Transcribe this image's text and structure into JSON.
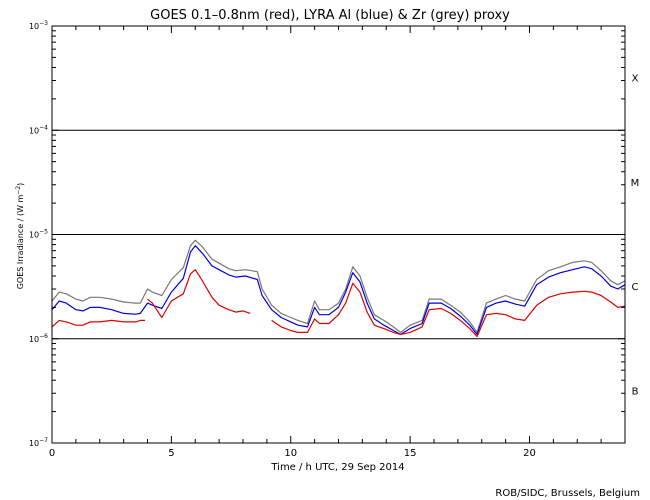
{
  "chart_data": {
    "type": "line",
    "title": "GOES 0.1–0.8nm (red), LYRA Al (blue) & Zr (grey) proxy",
    "xlabel": "Time / h UTC, 29 Sep 2014",
    "ylabel": "GOES Irradiance / (W m",
    "ylabel_exp": "−2",
    "ylabel_close": ")",
    "xlim": [
      0,
      24
    ],
    "ylim": [
      1e-07,
      0.001
    ],
    "yscale": "log",
    "x_ticks": [
      0,
      5,
      10,
      15,
      20
    ],
    "y_ticks": [
      {
        "value": 1e-07,
        "base": "10",
        "exp": "−7"
      },
      {
        "value": 1e-06,
        "base": "10",
        "exp": "−6"
      },
      {
        "value": 1e-05,
        "base": "10",
        "exp": "−5"
      },
      {
        "value": 0.0001,
        "base": "10",
        "exp": "−4"
      },
      {
        "value": 0.001,
        "base": "10",
        "exp": "−3"
      }
    ],
    "flare_classes": [
      {
        "label": "X",
        "value": 0.00032
      },
      {
        "label": "M",
        "value": 3.2e-05
      },
      {
        "label": "C",
        "value": 3.2e-06
      },
      {
        "label": "B",
        "value": 3.2e-07
      }
    ],
    "reference_lines": [
      0.0001,
      1e-05,
      1e-06
    ],
    "credit": "ROB/SIDC, Brussels, Belgium",
    "series": [
      {
        "name": "LYRA Zr (grey)",
        "color": "#777777",
        "points": [
          [
            0.0,
            2.3e-06
          ],
          [
            0.3,
            2.8e-06
          ],
          [
            0.6,
            2.7e-06
          ],
          [
            1.0,
            2.4e-06
          ],
          [
            1.3,
            2.3e-06
          ],
          [
            1.6,
            2.5e-06
          ],
          [
            2.0,
            2.5e-06
          ],
          [
            2.5,
            2.4e-06
          ],
          [
            3.0,
            2.25e-06
          ],
          [
            3.5,
            2.2e-06
          ],
          [
            3.7,
            2.2e-06
          ],
          [
            4.0,
            3e-06
          ],
          [
            4.2,
            2.8e-06
          ],
          [
            4.6,
            2.6e-06
          ],
          [
            5.0,
            3.7e-06
          ],
          [
            5.5,
            4.8e-06
          ],
          [
            5.8,
            7.8e-06
          ],
          [
            6.0,
            8.8e-06
          ],
          [
            6.3,
            7.6e-06
          ],
          [
            6.7,
            5.8e-06
          ],
          [
            7.0,
            5.3e-06
          ],
          [
            7.4,
            4.7e-06
          ],
          [
            7.7,
            4.5e-06
          ],
          [
            8.1,
            4.6e-06
          ],
          [
            8.6,
            4.4e-06
          ],
          [
            8.8,
            3e-06
          ],
          [
            9.2,
            2.1e-06
          ],
          [
            9.6,
            1.75e-06
          ],
          [
            10.0,
            1.6e-06
          ],
          [
            10.3,
            1.5e-06
          ],
          [
            10.7,
            1.4e-06
          ],
          [
            11.0,
            2.3e-06
          ],
          [
            11.2,
            1.9e-06
          ],
          [
            11.6,
            1.9e-06
          ],
          [
            12.0,
            2.2e-06
          ],
          [
            12.3,
            3e-06
          ],
          [
            12.6,
            4.9e-06
          ],
          [
            12.9,
            4e-06
          ],
          [
            13.2,
            2.5e-06
          ],
          [
            13.5,
            1.7e-06
          ],
          [
            13.9,
            1.5e-06
          ],
          [
            14.3,
            1.3e-06
          ],
          [
            14.6,
            1.15e-06
          ],
          [
            15.0,
            1.35e-06
          ],
          [
            15.5,
            1.5e-06
          ],
          [
            15.8,
            2.4e-06
          ],
          [
            16.3,
            2.4e-06
          ],
          [
            16.7,
            2.1e-06
          ],
          [
            17.1,
            1.8e-06
          ],
          [
            17.5,
            1.45e-06
          ],
          [
            17.8,
            1.15e-06
          ],
          [
            18.2,
            2.2e-06
          ],
          [
            18.6,
            2.4e-06
          ],
          [
            19.0,
            2.6e-06
          ],
          [
            19.4,
            2.4e-06
          ],
          [
            19.8,
            2.3e-06
          ],
          [
            20.3,
            3.7e-06
          ],
          [
            20.8,
            4.5e-06
          ],
          [
            21.3,
            4.9e-06
          ],
          [
            21.8,
            5.4e-06
          ],
          [
            22.3,
            5.6e-06
          ],
          [
            22.6,
            5.4e-06
          ],
          [
            23.0,
            4.5e-06
          ],
          [
            23.4,
            3.6e-06
          ],
          [
            23.7,
            3.3e-06
          ],
          [
            24.0,
            3.6e-06
          ]
        ]
      },
      {
        "name": "LYRA Al (blue)",
        "color": "#0000dd",
        "points": [
          [
            0.0,
            1.9e-06
          ],
          [
            0.3,
            2.3e-06
          ],
          [
            0.6,
            2.2e-06
          ],
          [
            1.0,
            1.9e-06
          ],
          [
            1.3,
            1.85e-06
          ],
          [
            1.6,
            2e-06
          ],
          [
            2.0,
            2e-06
          ],
          [
            2.5,
            1.9e-06
          ],
          [
            3.0,
            1.75e-06
          ],
          [
            3.5,
            1.72e-06
          ],
          [
            3.7,
            1.75e-06
          ],
          [
            4.0,
            2.2e-06
          ],
          [
            4.2,
            2.1e-06
          ],
          [
            4.6,
            1.95e-06
          ],
          [
            5.0,
            2.8e-06
          ],
          [
            5.5,
            3.8e-06
          ],
          [
            5.8,
            6.8e-06
          ],
          [
            6.0,
            7.8e-06
          ],
          [
            6.3,
            6.6e-06
          ],
          [
            6.7,
            5e-06
          ],
          [
            7.0,
            4.6e-06
          ],
          [
            7.4,
            4.1e-06
          ],
          [
            7.7,
            3.9e-06
          ],
          [
            8.1,
            4e-06
          ],
          [
            8.6,
            3.7e-06
          ],
          [
            8.8,
            2.6e-06
          ],
          [
            9.2,
            1.9e-06
          ],
          [
            9.6,
            1.6e-06
          ],
          [
            10.0,
            1.45e-06
          ],
          [
            10.3,
            1.35e-06
          ],
          [
            10.7,
            1.3e-06
          ],
          [
            11.0,
            2e-06
          ],
          [
            11.2,
            1.7e-06
          ],
          [
            11.6,
            1.7e-06
          ],
          [
            12.0,
            2e-06
          ],
          [
            12.3,
            2.8e-06
          ],
          [
            12.6,
            4.3e-06
          ],
          [
            12.9,
            3.5e-06
          ],
          [
            13.2,
            2.2e-06
          ],
          [
            13.5,
            1.55e-06
          ],
          [
            13.9,
            1.35e-06
          ],
          [
            14.3,
            1.2e-06
          ],
          [
            14.6,
            1.1e-06
          ],
          [
            15.0,
            1.25e-06
          ],
          [
            15.5,
            1.4e-06
          ],
          [
            15.8,
            2.2e-06
          ],
          [
            16.3,
            2.2e-06
          ],
          [
            16.7,
            1.95e-06
          ],
          [
            17.1,
            1.65e-06
          ],
          [
            17.5,
            1.35e-06
          ],
          [
            17.8,
            1.1e-06
          ],
          [
            18.2,
            2e-06
          ],
          [
            18.6,
            2.2e-06
          ],
          [
            19.0,
            2.3e-06
          ],
          [
            19.4,
            2.15e-06
          ],
          [
            19.8,
            2.05e-06
          ],
          [
            20.3,
            3.3e-06
          ],
          [
            20.8,
            3.9e-06
          ],
          [
            21.3,
            4.3e-06
          ],
          [
            21.8,
            4.6e-06
          ],
          [
            22.3,
            4.9e-06
          ],
          [
            22.6,
            4.7e-06
          ],
          [
            23.0,
            4e-06
          ],
          [
            23.4,
            3.2e-06
          ],
          [
            23.7,
            3e-06
          ],
          [
            24.0,
            3.3e-06
          ]
        ]
      },
      {
        "name": "GOES 0.1–0.8nm (red)",
        "color": "#dd0000",
        "points": [
          [
            0.0,
            1.3e-06
          ],
          [
            0.3,
            1.5e-06
          ],
          [
            0.6,
            1.45e-06
          ],
          [
            1.0,
            1.35e-06
          ],
          [
            1.3,
            1.35e-06
          ],
          [
            1.6,
            1.45e-06
          ],
          [
            2.0,
            1.45e-06
          ],
          [
            2.5,
            1.5e-06
          ],
          [
            3.0,
            1.45e-06
          ],
          [
            3.5,
            1.45e-06
          ],
          [
            3.7,
            1.5e-06
          ],
          [
            3.9,
            1.5e-06
          ],
          [
            null,
            null
          ],
          [
            4.0,
            2.4e-06
          ],
          [
            4.2,
            2.2e-06
          ],
          [
            4.6,
            1.6e-06
          ],
          [
            5.0,
            2.3e-06
          ],
          [
            5.5,
            2.7e-06
          ],
          [
            5.8,
            4.2e-06
          ],
          [
            6.0,
            4.6e-06
          ],
          [
            6.3,
            3.6e-06
          ],
          [
            6.7,
            2.5e-06
          ],
          [
            7.0,
            2.1e-06
          ],
          [
            7.4,
            1.9e-06
          ],
          [
            7.7,
            1.8e-06
          ],
          [
            8.0,
            1.85e-06
          ],
          [
            8.3,
            1.75e-06
          ],
          [
            null,
            null
          ],
          [
            9.2,
            1.5e-06
          ],
          [
            9.6,
            1.3e-06
          ],
          [
            10.0,
            1.2e-06
          ],
          [
            10.3,
            1.15e-06
          ],
          [
            10.7,
            1.15e-06
          ],
          [
            11.0,
            1.55e-06
          ],
          [
            11.2,
            1.4e-06
          ],
          [
            11.6,
            1.4e-06
          ],
          [
            12.0,
            1.7e-06
          ],
          [
            12.3,
            2.2e-06
          ],
          [
            12.6,
            3.4e-06
          ],
          [
            12.9,
            2.8e-06
          ],
          [
            13.2,
            1.8e-06
          ],
          [
            13.5,
            1.35e-06
          ],
          [
            13.9,
            1.25e-06
          ],
          [
            14.3,
            1.15e-06
          ],
          [
            14.6,
            1.1e-06
          ],
          [
            15.0,
            1.15e-06
          ],
          [
            15.5,
            1.3e-06
          ],
          [
            15.8,
            1.9e-06
          ],
          [
            16.3,
            1.95e-06
          ],
          [
            16.7,
            1.75e-06
          ],
          [
            17.1,
            1.5e-06
          ],
          [
            17.5,
            1.25e-06
          ],
          [
            17.8,
            1.05e-06
          ],
          [
            18.2,
            1.7e-06
          ],
          [
            18.6,
            1.75e-06
          ],
          [
            19.0,
            1.7e-06
          ],
          [
            19.4,
            1.55e-06
          ],
          [
            19.8,
            1.5e-06
          ],
          [
            20.3,
            2.1e-06
          ],
          [
            20.8,
            2.5e-06
          ],
          [
            21.3,
            2.7e-06
          ],
          [
            21.8,
            2.8e-06
          ],
          [
            22.3,
            2.85e-06
          ],
          [
            22.6,
            2.8e-06
          ],
          [
            23.0,
            2.6e-06
          ],
          [
            23.4,
            2.25e-06
          ],
          [
            23.7,
            2e-06
          ],
          [
            24.0,
            2.05e-06
          ]
        ]
      }
    ]
  }
}
